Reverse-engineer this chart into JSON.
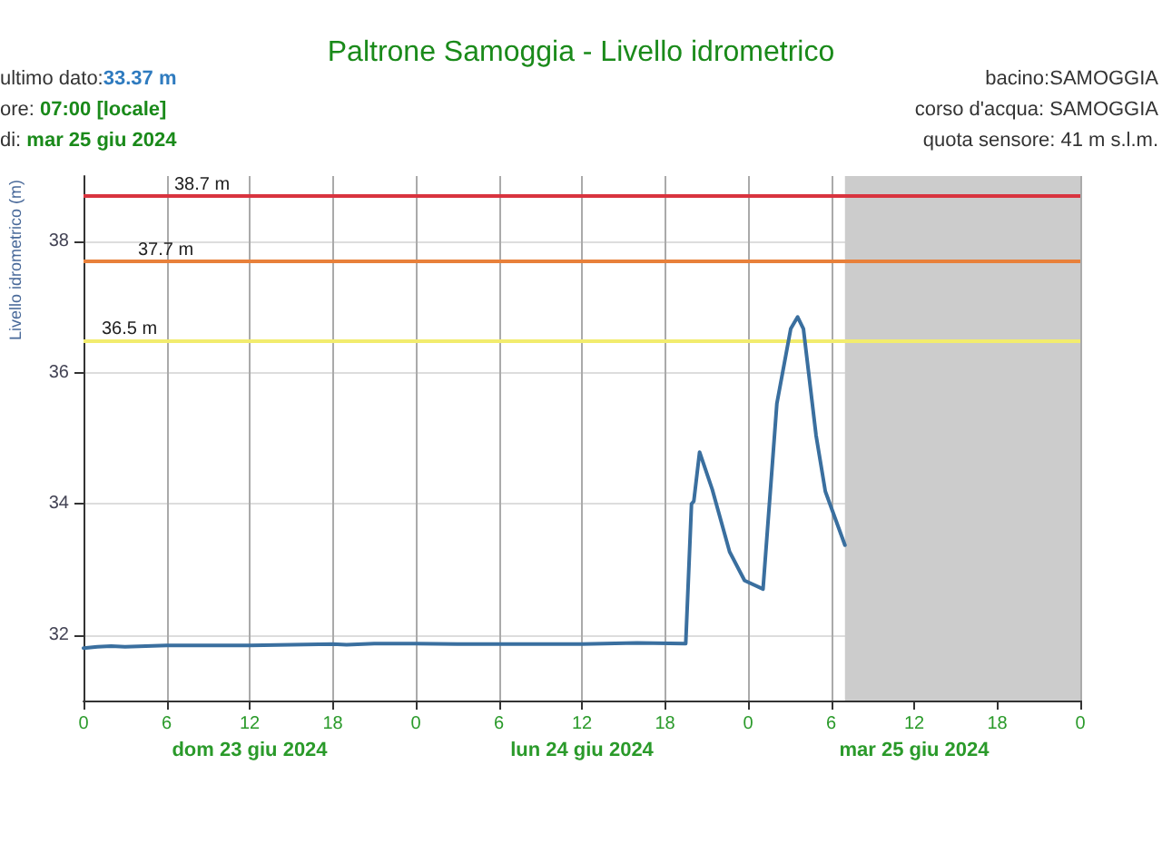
{
  "chart_data": {
    "type": "line",
    "title": "Paltrone Samoggia - Livello idrometrico",
    "ylabel": "Livello idrometrico (m)",
    "annotations": [
      "ultimo dato:33.37 m",
      "ore: 07:00 [locale]",
      "di: mar 25 giu 2024",
      "bacino:SAMOGGIA",
      "corso d'acqua: SAMOGGIA",
      "quota sensore: 41 m s.l.m.",
      "dom 23 giu 2024",
      "lun 24 giu 2024",
      "mar 25 giu 2024"
    ],
    "series": [
      {
        "color": "#3a6f9f",
        "x": [
          "2024-06-23T00:00",
          "2024-06-23T01:00",
          "2024-06-23T02:00",
          "2024-06-23T03:00",
          "2024-06-23T06:00",
          "2024-06-23T12:00",
          "2024-06-23T18:00",
          "2024-06-23T19:00",
          "2024-06-23T21:00",
          "2024-06-24T00:00",
          "2024-06-24T03:00",
          "2024-06-24T06:00",
          "2024-06-24T12:00",
          "2024-06-24T16:00",
          "2024-06-24T19:30",
          "2024-06-24T19:55",
          "2024-06-24T20:05",
          "2024-06-24T20:30",
          "2024-06-24T21:25",
          "2024-06-24T22:40",
          "2024-06-24T23:45",
          "2024-06-25T01:05",
          "2024-06-25T02:05",
          "2024-06-25T03:05",
          "2024-06-25T03:35",
          "2024-06-25T04:00",
          "2024-06-25T04:55",
          "2024-06-25T05:35",
          "2024-06-25T07:00"
        ],
        "values": [
          31.8,
          31.82,
          31.83,
          31.82,
          31.84,
          31.84,
          31.86,
          31.85,
          31.87,
          31.87,
          31.86,
          31.86,
          31.86,
          31.88,
          31.87,
          34.0,
          34.04,
          34.79,
          34.22,
          33.27,
          32.83,
          32.7,
          35.53,
          36.67,
          36.85,
          36.67,
          35.04,
          34.19,
          33.37
        ]
      }
    ],
    "xlim": [
      "2024-06-23T00:00",
      "2024-06-26T00:00"
    ],
    "xticks": [
      {
        "value": "2024-06-23T00:00",
        "label": "0"
      },
      {
        "value": "2024-06-23T06:00",
        "label": "6"
      },
      {
        "value": "2024-06-23T12:00",
        "label": "12"
      },
      {
        "value": "2024-06-23T18:00",
        "label": "18"
      },
      {
        "value": "2024-06-24T00:00",
        "label": "0"
      },
      {
        "value": "2024-06-24T06:00",
        "label": "6"
      },
      {
        "value": "2024-06-24T12:00",
        "label": "12"
      },
      {
        "value": "2024-06-24T18:00",
        "label": "18"
      },
      {
        "value": "2024-06-25T00:00",
        "label": "0"
      },
      {
        "value": "2024-06-25T06:00",
        "label": "6"
      },
      {
        "value": "2024-06-25T12:00",
        "label": "12"
      },
      {
        "value": "2024-06-25T18:00",
        "label": "18"
      },
      {
        "value": "2024-06-26T00:00",
        "label": "0"
      }
    ],
    "ylim": [
      31,
      39
    ],
    "yticks": [
      32,
      34,
      36,
      38
    ],
    "ref_lines": [
      {
        "axis": "y",
        "value": 38.7,
        "label": "38.7 m",
        "color": "#d9343f"
      },
      {
        "axis": "y",
        "value": 37.7,
        "label": "37.7 m",
        "color": "#e8803a"
      },
      {
        "axis": "y",
        "value": 36.5,
        "label": "36.5 m",
        "color": "#f2ec6e"
      }
    ],
    "bands": [
      {
        "axis": "x",
        "from": "2024-06-25T07:00",
        "to": "2024-06-26T00:00",
        "color": "#cccccc"
      }
    ],
    "grid": true,
    "marker": "none",
    "line_style": "solid"
  }
}
